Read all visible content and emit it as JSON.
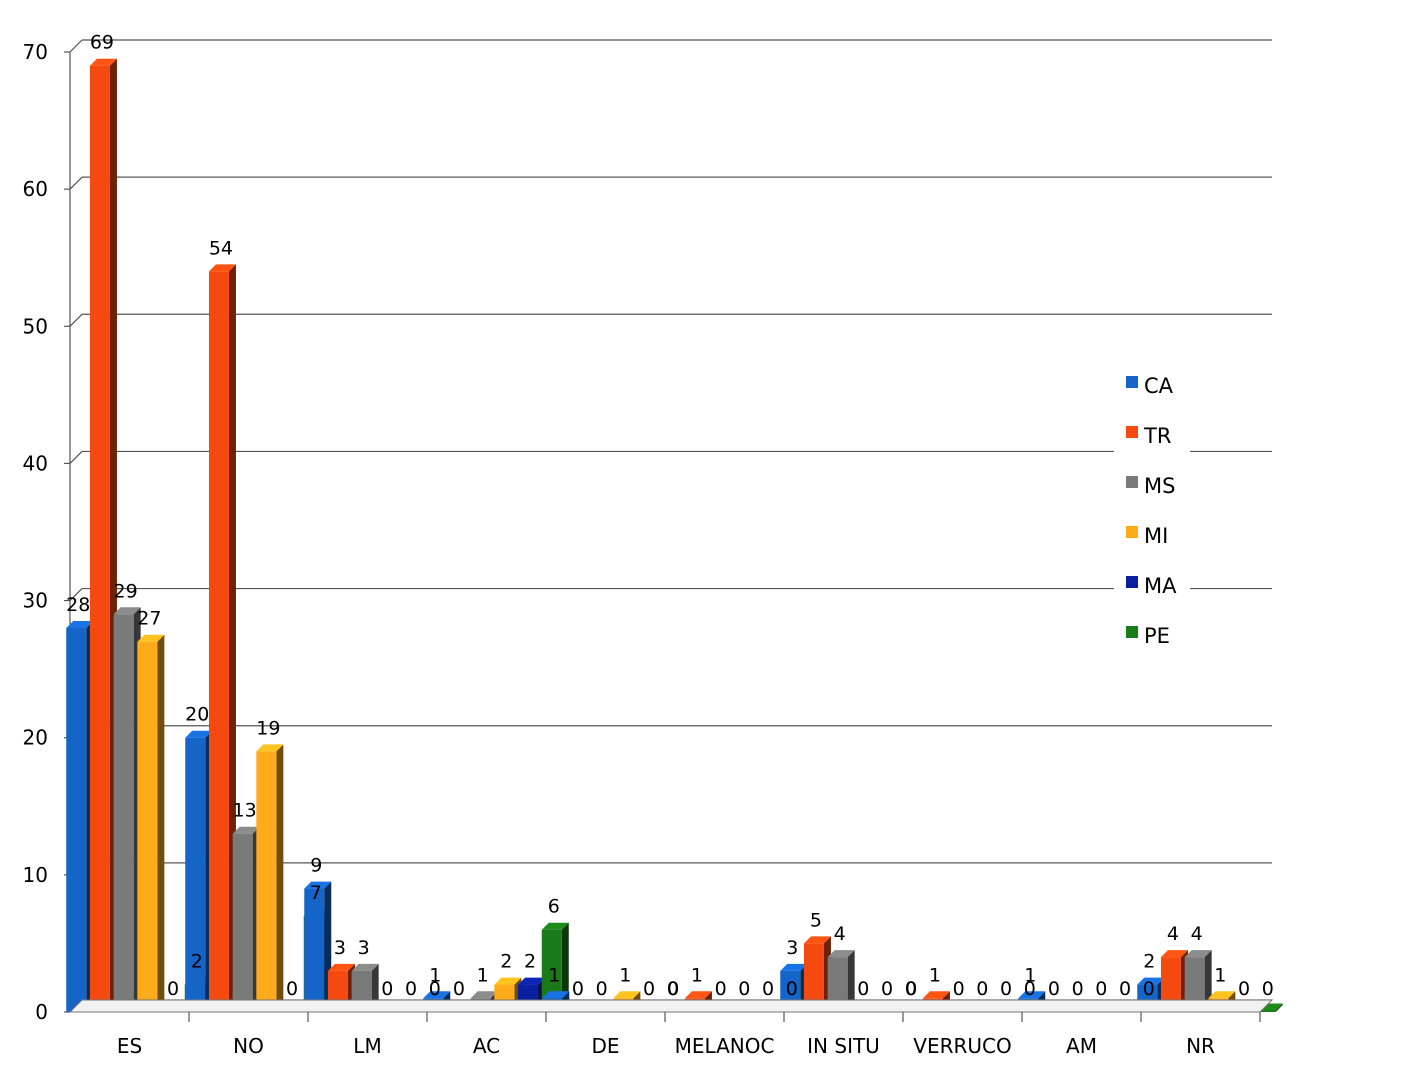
{
  "chart_data": {
    "type": "bar",
    "categories": [
      "ES",
      "NO",
      "LM",
      "AC",
      "DE",
      "MELANOC",
      "IN SITU",
      "VERRUCO",
      "AM",
      "NR"
    ],
    "series": [
      {
        "name": "CA",
        "color": "#1565c8",
        "values": [
          28,
          20,
          9,
          1,
          1,
          0,
          3,
          0,
          1,
          2
        ]
      },
      {
        "name": "TR",
        "color": "#f44a10",
        "values": [
          69,
          54,
          3,
          0,
          0,
          1,
          5,
          1,
          0,
          4
        ]
      },
      {
        "name": "MS",
        "color": "#7a7a7a",
        "values": [
          29,
          13,
          3,
          1,
          0,
          0,
          4,
          0,
          0,
          4
        ]
      },
      {
        "name": "MI",
        "color": "#ffab1a",
        "values": [
          27,
          19,
          0,
          2,
          1,
          0,
          0,
          0,
          0,
          1
        ]
      },
      {
        "name": "MA",
        "color": "#0a1fa0",
        "values": [
          0,
          0,
          0,
          2,
          0,
          0,
          0,
          0,
          0,
          0
        ]
      },
      {
        "name": "PE",
        "color": "#1a7a18",
        "values": [
          2,
          7,
          0,
          6,
          0,
          0,
          0,
          0,
          0,
          0
        ]
      }
    ],
    "yticks": [
      0,
      10,
      20,
      30,
      40,
      50,
      60,
      70
    ],
    "ylim": [
      0,
      70
    ],
    "grid": true,
    "legend": "right"
  }
}
